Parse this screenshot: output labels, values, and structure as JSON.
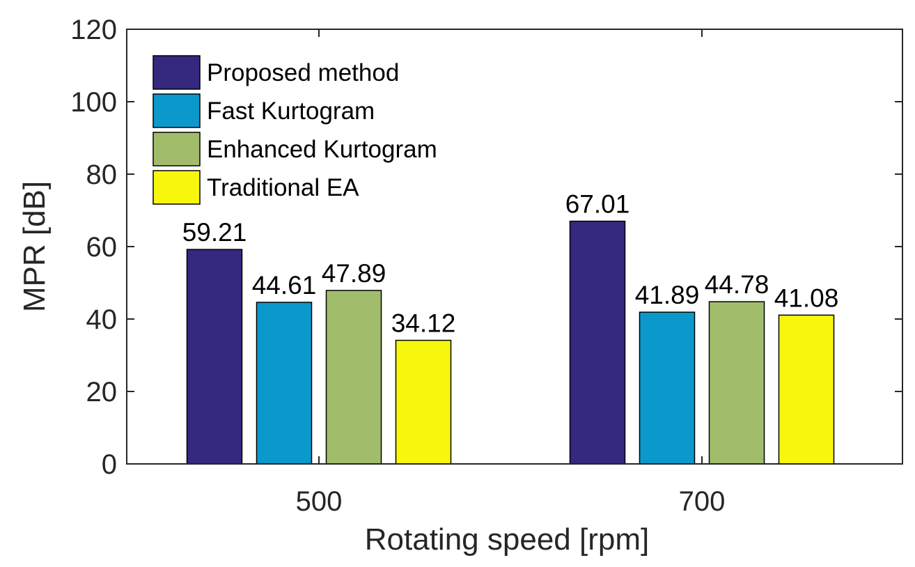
{
  "chart_data": {
    "type": "bar",
    "title": "",
    "xlabel": "Rotating speed [rpm]",
    "ylabel": "MPR [dB]",
    "categories": [
      "500",
      "700"
    ],
    "ylim": [
      0,
      120
    ],
    "yticks": [
      "0",
      "20",
      "40",
      "60",
      "80",
      "100",
      "120"
    ],
    "ytick_values": [
      0,
      20,
      40,
      60,
      80,
      100,
      120
    ],
    "legend_position": "top-left",
    "series": [
      {
        "name": "Proposed method",
        "color": "#34297f",
        "values": [
          59.21,
          67.01
        ],
        "labels": [
          "59.21",
          "67.01"
        ]
      },
      {
        "name": "Fast Kurtogram",
        "color": "#0b99cc",
        "values": [
          44.61,
          41.89
        ],
        "labels": [
          "44.61",
          "41.89"
        ]
      },
      {
        "name": "Enhanced Kurtogram",
        "color": "#a1bd6b",
        "values": [
          47.89,
          44.78
        ],
        "labels": [
          "47.89",
          "44.78"
        ]
      },
      {
        "name": "Traditional EA",
        "color": "#f7f70e",
        "values": [
          34.12,
          41.08
        ],
        "labels": [
          "34.12",
          "41.08"
        ]
      }
    ]
  }
}
